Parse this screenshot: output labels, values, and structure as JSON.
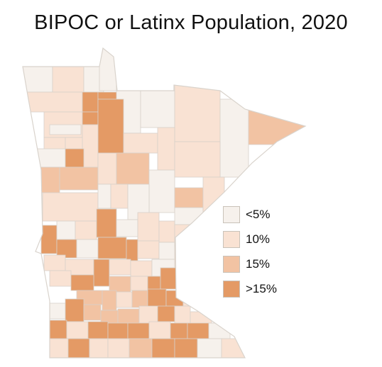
{
  "title": "BIPOC or Latinx Population, 2020",
  "legend": {
    "items": [
      {
        "label": "<5%",
        "color": "#f6f1ec"
      },
      {
        "label": "10%",
        "color": "#f9e2d3"
      },
      {
        "label": "15%",
        "color": "#f2c3a3"
      },
      {
        "label": ">15%",
        "color": "#e49a65"
      }
    ]
  },
  "map": {
    "region": "Minnesota",
    "unit": "county",
    "classification_by_category": {
      "0": "<5%",
      "1": "10%",
      "2": "15%",
      "3": ">15%"
    }
  }
}
